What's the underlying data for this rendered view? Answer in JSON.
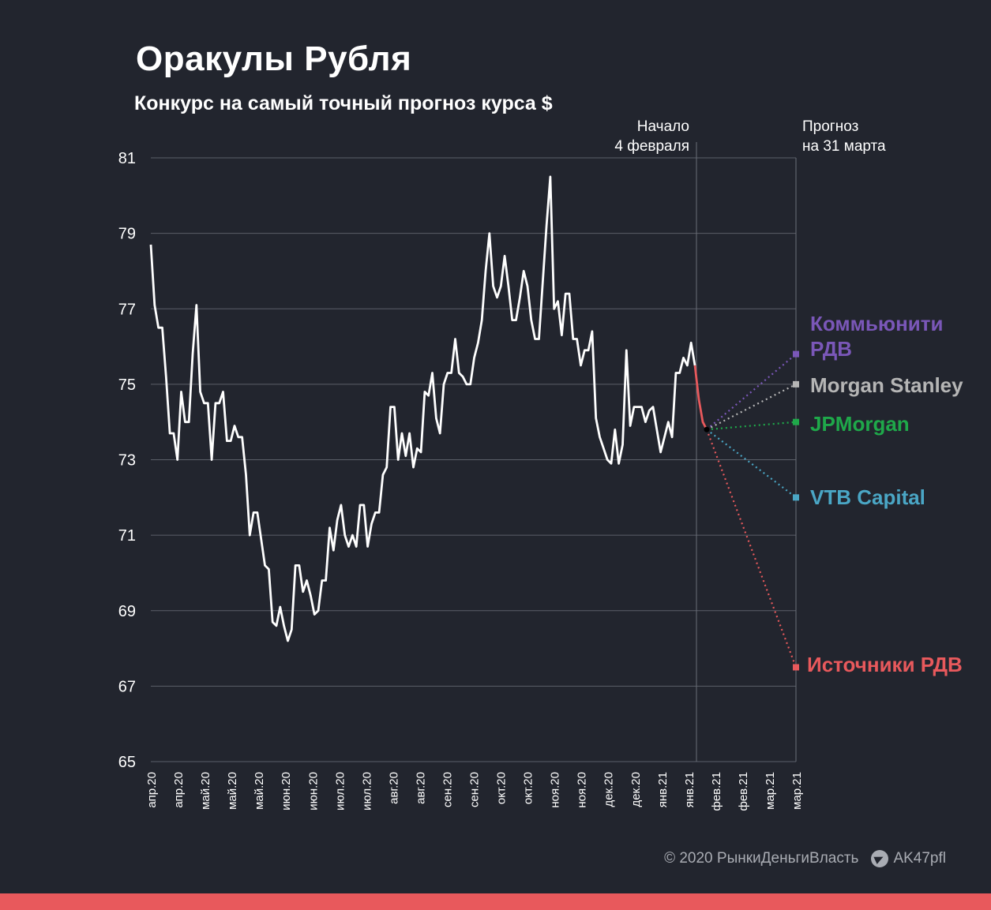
{
  "header": {
    "title": "Оракулы Рубля",
    "subtitle": "Конкурс на самый точный прогноз курса $"
  },
  "chart_data": {
    "type": "line",
    "ylim": [
      65,
      81
    ],
    "yticks": [
      81,
      79,
      77,
      75,
      73,
      71,
      69,
      67,
      65
    ],
    "grid": true,
    "x_labels": [
      "апр.20",
      "апр.20",
      "май.20",
      "май.20",
      "май.20",
      "июн.20",
      "июн.20",
      "июл.20",
      "июл.20",
      "авг.20",
      "авг.20",
      "сен.20",
      "сен.20",
      "окт.20",
      "окт.20",
      "ноя.20",
      "ноя.20",
      "дек.20",
      "дек.20",
      "янв.21",
      "янв.21",
      "фев.21",
      "фев.21",
      "мар.21",
      "мар.21"
    ],
    "history_color": "#ffffff",
    "history": [
      78.7,
      77.1,
      76.5,
      76.5,
      75.2,
      73.7,
      73.7,
      73.0,
      74.8,
      74.0,
      74.0,
      75.8,
      77.1,
      74.8,
      74.5,
      74.5,
      73.0,
      74.5,
      74.5,
      74.8,
      73.5,
      73.5,
      73.9,
      73.6,
      73.6,
      72.6,
      71.0,
      71.6,
      71.6,
      70.9,
      70.2,
      70.1,
      68.7,
      68.6,
      69.1,
      68.6,
      68.2,
      68.5,
      70.2,
      70.2,
      69.5,
      69.8,
      69.4,
      68.9,
      69.0,
      69.8,
      69.8,
      71.2,
      70.6,
      71.4,
      71.8,
      71.0,
      70.7,
      71.0,
      70.7,
      71.8,
      71.8,
      70.7,
      71.3,
      71.6,
      71.6,
      72.6,
      72.8,
      74.4,
      74.4,
      73.0,
      73.7,
      73.1,
      73.7,
      72.8,
      73.3,
      73.2,
      74.8,
      74.7,
      75.3,
      74.1,
      73.7,
      75.0,
      75.3,
      75.3,
      76.2,
      75.3,
      75.2,
      75.0,
      75.0,
      75.7,
      76.1,
      76.7,
      78.0,
      79.0,
      77.6,
      77.3,
      77.6,
      78.4,
      77.6,
      76.7,
      76.7,
      77.3,
      78.0,
      77.6,
      76.7,
      76.2,
      76.2,
      77.7,
      79.2,
      80.5,
      77.0,
      77.2,
      76.3,
      77.4,
      77.4,
      76.2,
      76.2,
      75.5,
      75.9,
      75.9,
      76.4,
      74.1,
      73.6,
      73.3,
      73.0,
      72.9,
      73.8,
      72.9,
      73.4,
      75.9,
      73.9,
      74.4,
      74.4,
      74.4,
      74.0,
      74.3,
      74.4,
      73.8,
      73.2,
      73.6,
      74.0,
      73.6,
      75.3,
      75.3,
      75.7,
      75.5,
      76.1,
      75.5
    ],
    "pre_start_color": "#e8595c",
    "pre_start": [
      75.5,
      74.6,
      74.0,
      73.8
    ],
    "start_value": 73.8,
    "start_label": "Начало\n4 февраля",
    "forecast_label": "Прогноз\nна 31 марта",
    "series": [
      {
        "name": "Коммьюнити РДВ",
        "value": 75.8,
        "color": "#7a57b8"
      },
      {
        "name": "Morgan Stanley",
        "value": 75.0,
        "color": "#b5b5b5"
      },
      {
        "name": "JPMorgan",
        "value": 74.0,
        "color": "#1fa84a"
      },
      {
        "name": "VTB Capital",
        "value": 72.0,
        "color": "#4aa6c5"
      },
      {
        "name": "Источники РДВ",
        "value": 67.5,
        "color": "#e8595c"
      }
    ]
  },
  "footer": {
    "copyright": "© 2020  РынкиДеньгиВласть",
    "telegram": "AK47pfl"
  }
}
